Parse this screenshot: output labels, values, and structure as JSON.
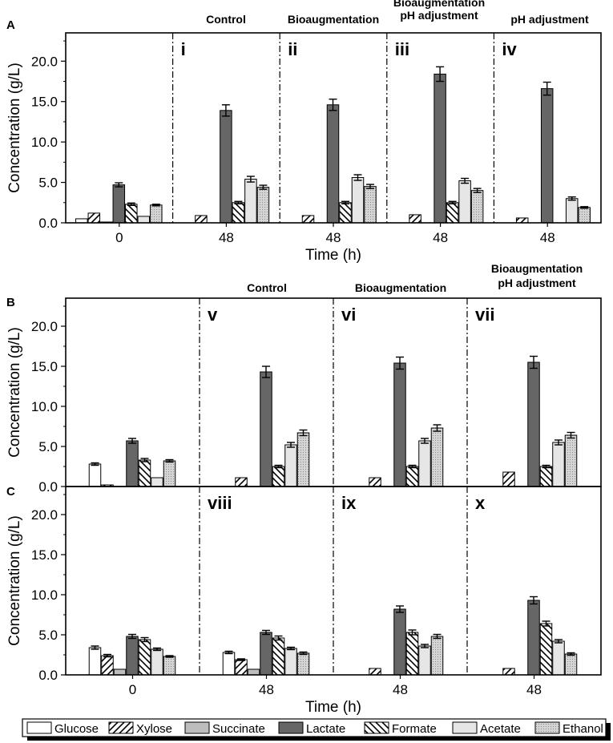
{
  "series_names": [
    "Glucose",
    "Xylose",
    "Succinate",
    "Lactate",
    "Formate",
    "Acetate",
    "Ethanol"
  ],
  "colors": {
    "glucose": "#ffffff",
    "succinate": "#bdbdbd",
    "lactate": "#666666",
    "acetate": "#e6e6e6",
    "ethanol": "#cfcfcf",
    "axis": "#000000"
  },
  "chart_data": [
    {
      "type": "bar",
      "panel_label": "A",
      "ylabel": "Concentration (g/L)",
      "xlabel": "Time (h)",
      "ylim": [
        0,
        23.5
      ],
      "yticks": [
        "0.0",
        "5.0",
        "10.0",
        "15.0",
        "20.0"
      ],
      "groups": [
        {
          "x_label": "0",
          "roman": "",
          "condition": [],
          "values": [
            0.5,
            1.2,
            0.1,
            4.7,
            2.3,
            0.8,
            2.2
          ],
          "errors": [
            0,
            0,
            0,
            0.25,
            0.15,
            0,
            0.1
          ]
        },
        {
          "x_label": "48",
          "roman": "i",
          "condition": [
            "Control"
          ],
          "values": [
            0,
            0.9,
            0,
            13.9,
            2.5,
            5.4,
            4.4
          ],
          "errors": [
            0,
            0,
            0,
            0.7,
            0.15,
            0.35,
            0.25
          ]
        },
        {
          "x_label": "48",
          "roman": "ii",
          "condition": [
            "Bioaugmentation"
          ],
          "values": [
            0,
            0.9,
            0,
            14.6,
            2.5,
            5.6,
            4.5
          ],
          "errors": [
            0,
            0,
            0,
            0.7,
            0.15,
            0.35,
            0.25
          ]
        },
        {
          "x_label": "48",
          "roman": "iii",
          "condition": [
            "Bioaugmentation",
            "pH adjustment"
          ],
          "values": [
            0,
            1.0,
            0,
            18.4,
            2.5,
            5.2,
            4.0
          ],
          "errors": [
            0,
            0,
            0,
            0.9,
            0.15,
            0.3,
            0.25
          ]
        },
        {
          "x_label": "48",
          "roman": "iv",
          "condition": [
            "pH adjustment"
          ],
          "values": [
            0,
            0.6,
            0,
            16.6,
            0,
            3.0,
            1.9
          ],
          "errors": [
            0,
            0,
            0,
            0.8,
            0,
            0.2,
            0.1
          ]
        }
      ]
    },
    {
      "type": "bar",
      "panel_label": "B",
      "ylabel": "Concentration (g/L)",
      "xlabel": "",
      "ylim": [
        0,
        23.5
      ],
      "yticks": [
        "0.0",
        "5.0",
        "10.0",
        "15.0",
        "20.0"
      ],
      "groups": [
        {
          "x_label": "",
          "roman": "",
          "condition": [],
          "values": [
            2.8,
            0.2,
            0,
            5.7,
            3.3,
            1.1,
            3.2
          ],
          "errors": [
            0.15,
            0,
            0,
            0.3,
            0.2,
            0,
            0.15
          ]
        },
        {
          "x_label": "",
          "roman": "v",
          "condition": [
            "Control"
          ],
          "values": [
            0,
            1.1,
            0,
            14.3,
            2.5,
            5.2,
            6.7
          ],
          "errors": [
            0,
            0,
            0,
            0.7,
            0.15,
            0.3,
            0.35
          ]
        },
        {
          "x_label": "",
          "roman": "vi",
          "condition": [
            "Bioaugmentation"
          ],
          "values": [
            0,
            1.1,
            0,
            15.4,
            2.5,
            5.7,
            7.3
          ],
          "errors": [
            0,
            0,
            0,
            0.75,
            0.15,
            0.3,
            0.4
          ]
        },
        {
          "x_label": "",
          "roman": "vii",
          "condition": [
            "Bioaugmentation",
            "pH adjustment"
          ],
          "values": [
            0,
            1.8,
            0,
            15.5,
            2.5,
            5.5,
            6.4
          ],
          "errors": [
            0,
            0,
            0,
            0.75,
            0.15,
            0.3,
            0.35
          ]
        }
      ]
    },
    {
      "type": "bar",
      "panel_label": "C",
      "ylabel": "Concentration (g/L)",
      "xlabel": "Time (h)",
      "ylim": [
        0,
        23.5
      ],
      "yticks": [
        "0.0",
        "5.0",
        "10.0",
        "15.0",
        "20.0"
      ],
      "groups": [
        {
          "x_label": "0",
          "roman": "",
          "condition": [],
          "values": [
            3.4,
            2.4,
            0.7,
            4.8,
            4.4,
            3.2,
            2.3
          ],
          "errors": [
            0.2,
            0.15,
            0,
            0.25,
            0.25,
            0.15,
            0.1
          ]
        },
        {
          "x_label": "48",
          "roman": "viii",
          "condition": [],
          "values": [
            2.8,
            1.9,
            0.7,
            5.3,
            4.6,
            3.3,
            2.7
          ],
          "errors": [
            0.15,
            0.1,
            0,
            0.25,
            0.25,
            0.15,
            0.15
          ]
        },
        {
          "x_label": "48",
          "roman": "ix",
          "condition": [],
          "values": [
            0,
            0.8,
            0,
            8.2,
            5.3,
            3.6,
            4.8
          ],
          "errors": [
            0,
            0,
            0,
            0.4,
            0.3,
            0.2,
            0.25
          ]
        },
        {
          "x_label": "48",
          "roman": "x",
          "condition": [],
          "values": [
            0,
            0.8,
            0,
            9.3,
            6.4,
            4.2,
            2.6
          ],
          "errors": [
            0,
            0,
            0,
            0.45,
            0.3,
            0.2,
            0.15
          ]
        }
      ]
    }
  ]
}
